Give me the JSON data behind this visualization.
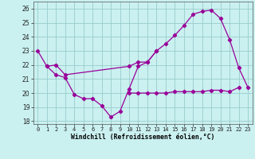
{
  "xlabel": "Windchill (Refroidissement éolien,°C)",
  "background_color": "#caf0f0",
  "grid_color": "#99cccc",
  "line_color": "#990099",
  "ylim": [
    17.8,
    26.5
  ],
  "yticks": [
    18,
    19,
    20,
    21,
    22,
    23,
    24,
    25,
    26
  ],
  "xticks": [
    0,
    1,
    2,
    3,
    4,
    5,
    6,
    7,
    8,
    9,
    10,
    11,
    12,
    13,
    14,
    15,
    16,
    17,
    18,
    19,
    20,
    21,
    22,
    23
  ],
  "curve_a_x": [
    0,
    1,
    2,
    3,
    10,
    11,
    12,
    13,
    14,
    15,
    16,
    17,
    18,
    19,
    20,
    21,
    22,
    23
  ],
  "curve_a_y": [
    23.0,
    21.9,
    22.0,
    21.3,
    21.9,
    22.2,
    22.2,
    23.0,
    23.5,
    24.1,
    24.8,
    25.6,
    25.8,
    25.9,
    25.3,
    23.8,
    21.8,
    20.4
  ],
  "curve_b_x": [
    1,
    2,
    3,
    4,
    5,
    6,
    7,
    8,
    9,
    10,
    11,
    12,
    13
  ],
  "curve_b_y": [
    21.9,
    21.3,
    21.1,
    19.9,
    19.6,
    19.6,
    19.1,
    18.3,
    18.7,
    20.3,
    21.9,
    22.2,
    23.0
  ],
  "curve_c_x": [
    10,
    11,
    12,
    13,
    14,
    15,
    16,
    17,
    18,
    19,
    20,
    21,
    22
  ],
  "curve_c_y": [
    20.0,
    20.0,
    20.0,
    20.0,
    20.0,
    20.1,
    20.1,
    20.1,
    20.1,
    20.2,
    20.2,
    20.1,
    20.4
  ]
}
